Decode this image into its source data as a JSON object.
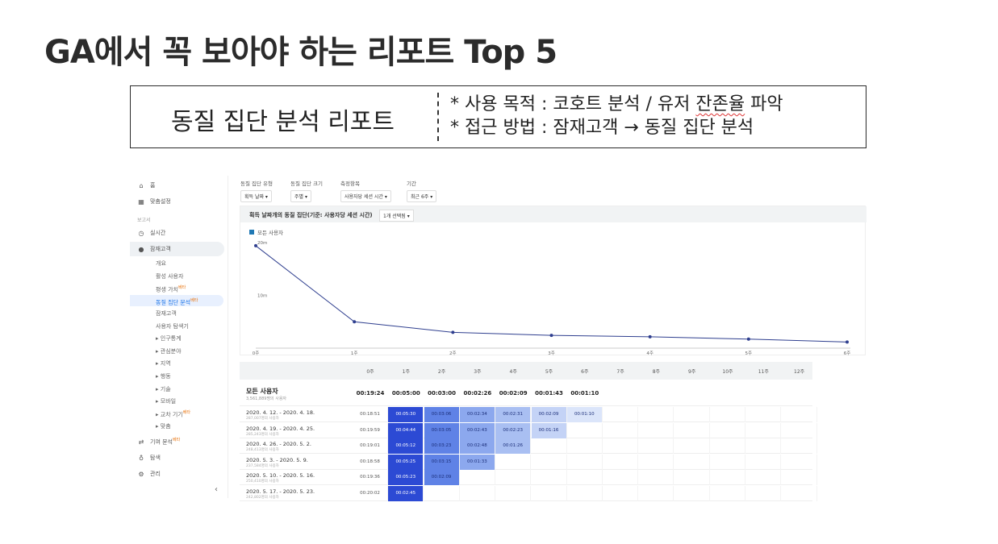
{
  "slide": {
    "title": "GA에서 꼭 보아야 하는 리포트 Top 5",
    "box_title": "동질 집단 분석 리포트",
    "line1_prefix": "* 사용 목적 : 코호트 분석 / 유저 ",
    "line1_squiggle": "잔존율",
    "line1_suffix": " 파악",
    "line2": "* 접근 방법 : 잠재고객 → 동질 집단 분석"
  },
  "sidebar": {
    "home": "홈",
    "custom": "맞춤설정",
    "reports_head": "보고서",
    "realtime": "실시간",
    "audience": "잠재고객",
    "subs": [
      "개요",
      "활성 사용자",
      "평생 가치",
      "동질 집단 분석",
      "잠재고객",
      "사용자 탐색기",
      "인구통계",
      "관심분야",
      "지역",
      "행동",
      "기술",
      "모바일",
      "교차 기기",
      "맞춤"
    ],
    "beta": "베타",
    "attribution": "기여 분석",
    "discover": "탐색",
    "admin": "관리",
    "collapse": "‹"
  },
  "filters": [
    {
      "label": "동질 집단 유형",
      "value": "획득 날짜"
    },
    {
      "label": "동질 집단 크기",
      "value": "주별"
    },
    {
      "label": "측정항목",
      "value": "사용자당 세션 시간"
    },
    {
      "label": "기간",
      "value": "최근 6주"
    }
  ],
  "chart_card": {
    "title": "획득 날짜개의 동질 집단(기준: 사용자당 세션 시간)",
    "dropdown": "1개 선택됨",
    "legend": "모든 사용자"
  },
  "chart_data": {
    "type": "line",
    "x": [
      "0주",
      "1주",
      "2주",
      "3주",
      "4주",
      "5주",
      "6주"
    ],
    "series": [
      {
        "name": "모든 사용자",
        "values": [
          19.4,
          5.0,
          3.0,
          2.43,
          2.15,
          1.72,
          1.17
        ]
      }
    ],
    "ylim": [
      0,
      20
    ],
    "y_ticks": [
      {
        "v": 20,
        "label": "20m"
      },
      {
        "v": 10,
        "label": "10m"
      }
    ],
    "color": "#2f3f8f"
  },
  "table": {
    "headers": [
      "0주",
      "1주",
      "2주",
      "3주",
      "4주",
      "5주",
      "6주",
      "7주",
      "8주",
      "9주",
      "10주",
      "11주",
      "12주"
    ],
    "all": {
      "name": "모든 사용자",
      "sub": "3,561,889명의 사용자",
      "values": [
        "00:19:24",
        "00:05:00",
        "00:03:00",
        "00:02:26",
        "00:02:09",
        "00:01:43",
        "00:01:10"
      ]
    },
    "rows": [
      {
        "name": "2020. 4. 12. - 2020. 4. 18.",
        "sub": "287,007명의 사용자",
        "values": [
          "00:18:51",
          "00:05:30",
          "00:03:06",
          "00:02:34",
          "00:02:31",
          "00:02:09",
          "00:01:10"
        ]
      },
      {
        "name": "2020. 4. 19. - 2020. 4. 25.",
        "sub": "285,243명의 사용자",
        "values": [
          "00:19:59",
          "00:04:44",
          "00:03:05",
          "00:02:43",
          "00:02:23",
          "00:01:16"
        ]
      },
      {
        "name": "2020. 4. 26. - 2020. 5. 2.",
        "sub": "248,413명의 사용자",
        "values": [
          "00:19:01",
          "00:05:12",
          "00:03:23",
          "00:02:48",
          "00:01:26"
        ]
      },
      {
        "name": "2020. 5. 3. - 2020. 5. 9.",
        "sub": "237,584명의 사용자",
        "values": [
          "00:18:58",
          "00:05:25",
          "00:03:15",
          "00:01:33"
        ]
      },
      {
        "name": "2020. 5. 10. - 2020. 5. 16.",
        "sub": "250,410명의 사용자",
        "values": [
          "00:19:36",
          "00:05:23",
          "00:02:09"
        ]
      },
      {
        "name": "2020. 5. 17. - 2020. 5. 23.",
        "sub": "242,802명의 사용자",
        "values": [
          "00:20:02",
          "00:02:45"
        ]
      }
    ],
    "heat_colors": [
      "#2c4ad4",
      "#5f82e6",
      "#8ca8ee",
      "#a9bff2",
      "#c4d3f6",
      "#dbe5fa"
    ]
  }
}
